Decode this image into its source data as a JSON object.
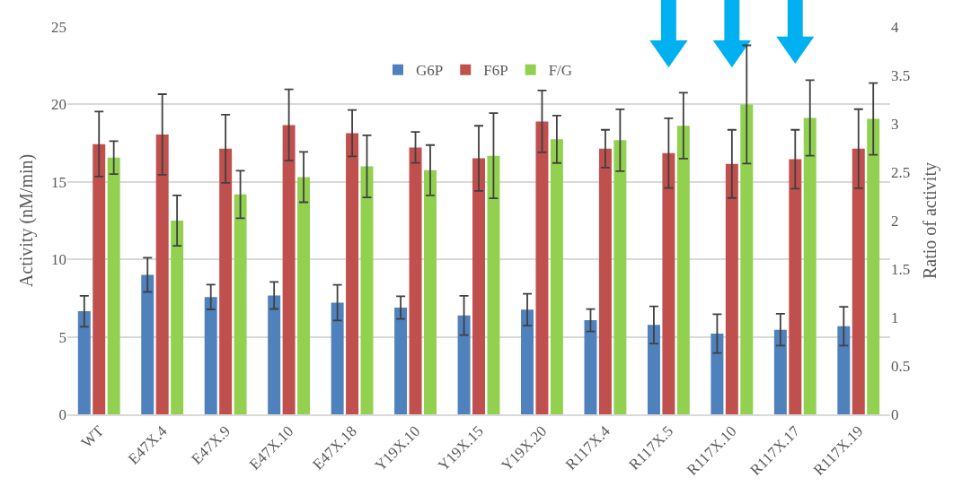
{
  "chart_data": {
    "type": "bar",
    "ylabel": "Activity (nM/min)",
    "y2label": "Ratio of activity",
    "categories": [
      "WT",
      "E47X.4",
      "E47X.9",
      "E47X.10",
      "E47X.18",
      "Y19X.10",
      "Y19X.15",
      "Y19X.20",
      "R117X.4",
      "R117X.5",
      "R117X.10",
      "R117X.17",
      "R117X.19"
    ],
    "series": [
      {
        "name": "G6P",
        "color": "#4f81bd",
        "values": [
          6.65,
          9.0,
          7.57,
          7.67,
          7.2,
          6.89,
          6.38,
          6.75,
          6.07,
          5.77,
          5.21,
          5.46,
          5.69
        ],
        "errors": [
          1.0,
          1.1,
          0.8,
          0.87,
          1.15,
          0.73,
          1.27,
          1.03,
          0.72,
          1.2,
          1.25,
          1.03,
          1.25
        ]
      },
      {
        "name": "F6P",
        "color": "#c0504d",
        "values": [
          17.44,
          18.06,
          17.14,
          18.67,
          18.14,
          17.22,
          16.52,
          18.9,
          17.14,
          16.85,
          16.16,
          16.46,
          17.14
        ],
        "errors": [
          2.1,
          2.6,
          2.2,
          2.3,
          1.5,
          1.0,
          2.1,
          2.0,
          1.22,
          2.25,
          2.2,
          1.9,
          2.55
        ]
      },
      {
        "name": "F/G",
        "color": "#92d050",
        "axis": "y2",
        "values": [
          2.65,
          2.0,
          2.27,
          2.45,
          2.56,
          2.52,
          2.67,
          2.84,
          2.83,
          2.98,
          3.2,
          3.06,
          3.05
        ],
        "errors": [
          0.17,
          0.26,
          0.245,
          0.26,
          0.32,
          0.26,
          0.44,
          0.245,
          0.32,
          0.34,
          0.61,
          0.39,
          0.37
        ]
      }
    ],
    "ylim": [
      0,
      25
    ],
    "yticks": [
      0,
      5,
      10,
      15,
      20,
      25
    ],
    "y2lim": [
      0,
      4
    ],
    "y2ticks": [
      0,
      0.5,
      1,
      1.5,
      2,
      2.5,
      3,
      3.5,
      4
    ],
    "grid": "y",
    "legend": "top"
  }
}
